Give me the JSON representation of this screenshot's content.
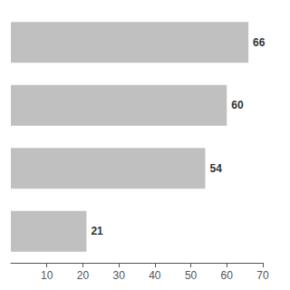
{
  "chart_data": {
    "type": "bar",
    "orientation": "horizontal",
    "categories": [
      null,
      null,
      null,
      null
    ],
    "values": [
      66,
      60,
      54,
      21
    ],
    "color": "#c0c0c0",
    "xlim": [
      0,
      70
    ],
    "xticks": [
      10,
      20,
      30,
      40,
      50,
      60,
      70
    ],
    "data_labels": true,
    "tick_labels": "x",
    "grid": false
  }
}
